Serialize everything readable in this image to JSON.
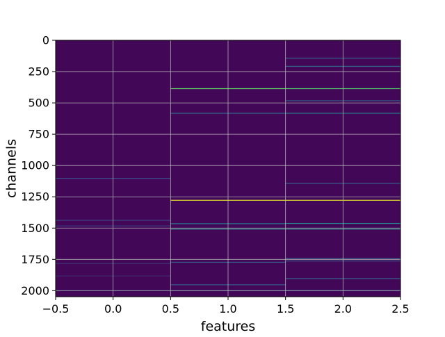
{
  "chart_data": {
    "type": "heatmap",
    "title": "",
    "xlabel": "features",
    "ylabel": "channels",
    "xlim": [
      -0.5,
      2.5
    ],
    "ylim": [
      2048,
      0
    ],
    "y_inverted": true,
    "grid": true,
    "colormap": "viridis",
    "colormap_stops": [
      "#440154",
      "#3b528b",
      "#21918c",
      "#5ec962",
      "#fde725"
    ],
    "background_value": 0.02,
    "x_ticks": [
      -0.5,
      0.0,
      0.5,
      1.0,
      1.5,
      2.0,
      2.5
    ],
    "x_tick_labels": [
      "−0.5",
      "0.0",
      "0.5",
      "1.0",
      "1.5",
      "2.0",
      "2.5"
    ],
    "y_ticks": [
      0,
      250,
      500,
      750,
      1000,
      1250,
      1500,
      1750,
      2000
    ],
    "y_tick_labels": [
      "0",
      "250",
      "500",
      "750",
      "1000",
      "1250",
      "1500",
      "1750",
      "2000"
    ],
    "columns": [
      {
        "feature": 0,
        "bright_rows": [
          {
            "channel": 1100,
            "value": 0.25
          },
          {
            "channel": 1435,
            "value": 0.2
          },
          {
            "channel": 1480,
            "value": 0.18
          },
          {
            "channel": 1780,
            "value": 0.15
          },
          {
            "channel": 1880,
            "value": 0.12
          },
          {
            "channel": 1995,
            "value": 0.18
          }
        ]
      },
      {
        "feature": 1,
        "bright_rows": [
          {
            "channel": 383,
            "value": 0.75
          },
          {
            "channel": 580,
            "value": 0.35
          },
          {
            "channel": 1275,
            "value": 0.95
          },
          {
            "channel": 1462,
            "value": 0.42
          },
          {
            "channel": 1505,
            "value": 0.5
          },
          {
            "channel": 1770,
            "value": 0.3
          },
          {
            "channel": 1950,
            "value": 0.3
          },
          {
            "channel": 1995,
            "value": 0.25
          }
        ]
      },
      {
        "feature": 2,
        "bright_rows": [
          {
            "channel": 140,
            "value": 0.3
          },
          {
            "channel": 205,
            "value": 0.35
          },
          {
            "channel": 383,
            "value": 0.7
          },
          {
            "channel": 480,
            "value": 0.3
          },
          {
            "channel": 580,
            "value": 0.4
          },
          {
            "channel": 1140,
            "value": 0.3
          },
          {
            "channel": 1275,
            "value": 0.95
          },
          {
            "channel": 1460,
            "value": 0.45
          },
          {
            "channel": 1505,
            "value": 0.5
          },
          {
            "channel": 1740,
            "value": 0.3
          },
          {
            "channel": 1760,
            "value": 0.28
          },
          {
            "channel": 1900,
            "value": 0.3
          },
          {
            "channel": 1995,
            "value": 0.28
          }
        ]
      }
    ]
  }
}
